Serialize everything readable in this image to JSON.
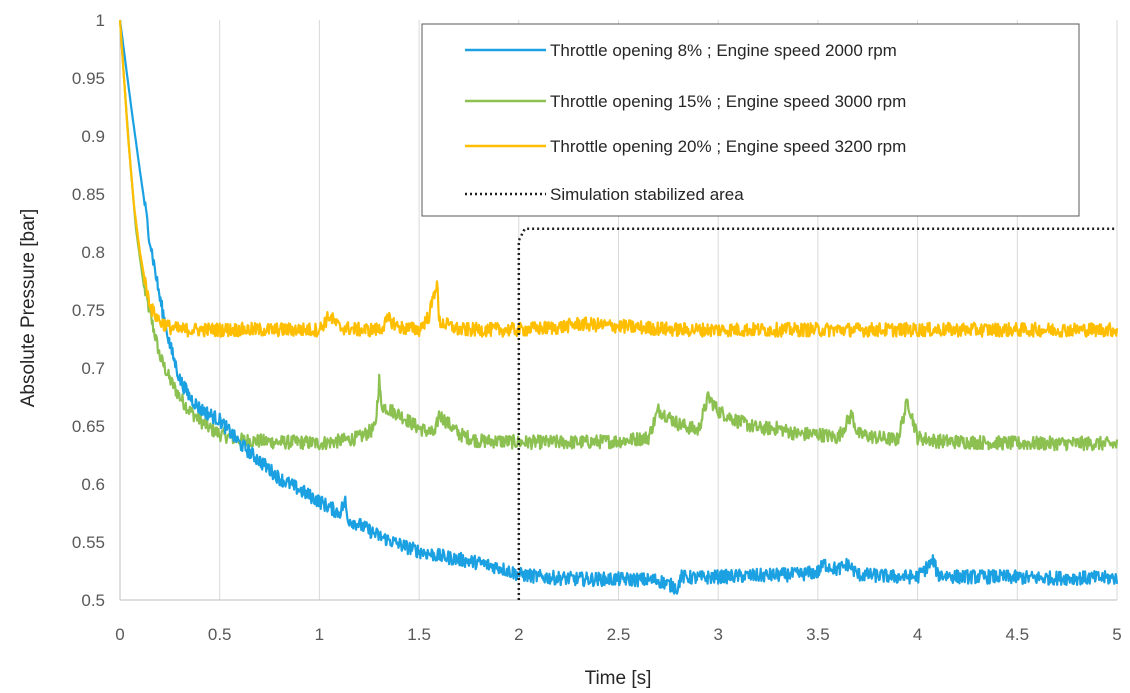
{
  "chart_data": {
    "type": "line",
    "title": "",
    "xlabel": "Time [s]",
    "ylabel": "Absolute Pressure [bar]",
    "xlim": [
      0,
      5
    ],
    "ylim": [
      0.5,
      1
    ],
    "x_ticks": [
      0,
      0.5,
      1,
      1.5,
      2,
      2.5,
      3,
      3.5,
      4,
      4.5,
      5
    ],
    "x_tick_labels": [
      "0",
      "0.5",
      "1",
      "1.5",
      "2",
      "2.5",
      "3",
      "3.5",
      "4",
      "4.5",
      "5"
    ],
    "y_ticks": [
      0.5,
      0.55,
      0.6,
      0.65,
      0.7,
      0.75,
      0.8,
      0.85,
      0.9,
      0.95,
      1
    ],
    "y_tick_labels": [
      "0.5",
      "0.55",
      "0.6",
      "0.65",
      "0.7",
      "0.75",
      "0.8",
      "0.85",
      "0.9",
      "0.95",
      "1"
    ],
    "grid": "vertical",
    "legend_position": "top-right",
    "series": [
      {
        "name": "Throttle opening 8% ; Engine speed 2000 rpm",
        "color": "#1BA1E2",
        "x": [
          0,
          0.03,
          0.06,
          0.1,
          0.15,
          0.2,
          0.25,
          0.3,
          0.35,
          0.4,
          0.45,
          0.5,
          0.55,
          0.6,
          0.7,
          0.8,
          0.9,
          1.0,
          1.1,
          1.13,
          1.14,
          1.2,
          1.3,
          1.4,
          1.5,
          1.6,
          1.7,
          1.8,
          1.9,
          2.0,
          2.1,
          2.2,
          2.3,
          2.5,
          2.7,
          2.8,
          2.81,
          2.9,
          3.0,
          3.2,
          3.4,
          3.5,
          3.53,
          3.6,
          3.65,
          3.7,
          3.8,
          3.9,
          4.0,
          4.08,
          4.1,
          4.2,
          4.4,
          4.6,
          4.8,
          5.0
        ],
        "y": [
          1.0,
          0.96,
          0.92,
          0.87,
          0.81,
          0.76,
          0.72,
          0.69,
          0.675,
          0.665,
          0.66,
          0.655,
          0.645,
          0.635,
          0.62,
          0.605,
          0.595,
          0.585,
          0.575,
          0.585,
          0.57,
          0.565,
          0.555,
          0.548,
          0.542,
          0.538,
          0.535,
          0.532,
          0.528,
          0.522,
          0.52,
          0.519,
          0.518,
          0.518,
          0.517,
          0.51,
          0.52,
          0.519,
          0.52,
          0.521,
          0.522,
          0.524,
          0.531,
          0.526,
          0.531,
          0.522,
          0.521,
          0.52,
          0.52,
          0.534,
          0.522,
          0.52,
          0.52,
          0.519,
          0.519,
          0.519
        ]
      },
      {
        "name": "Throttle opening 15% ; Engine speed 3000 rpm",
        "color": "#8CC152",
        "x": [
          0,
          0.02,
          0.05,
          0.08,
          0.12,
          0.16,
          0.2,
          0.25,
          0.3,
          0.35,
          0.4,
          0.45,
          0.5,
          0.6,
          0.7,
          0.8,
          0.9,
          1.0,
          1.1,
          1.2,
          1.28,
          1.3,
          1.31,
          1.4,
          1.5,
          1.58,
          1.6,
          1.7,
          1.8,
          1.9,
          2.0,
          2.1,
          2.3,
          2.5,
          2.65,
          2.7,
          2.8,
          2.9,
          2.95,
          3.0,
          3.1,
          3.2,
          3.3,
          3.4,
          3.5,
          3.6,
          3.67,
          3.7,
          3.8,
          3.9,
          3.95,
          4.0,
          4.1,
          4.3,
          4.5,
          4.7,
          4.9,
          5.0
        ],
        "y": [
          1.0,
          0.95,
          0.88,
          0.82,
          0.77,
          0.74,
          0.71,
          0.69,
          0.675,
          0.663,
          0.655,
          0.648,
          0.643,
          0.638,
          0.637,
          0.636,
          0.636,
          0.635,
          0.637,
          0.64,
          0.648,
          0.69,
          0.668,
          0.66,
          0.648,
          0.643,
          0.66,
          0.643,
          0.637,
          0.637,
          0.636,
          0.636,
          0.636,
          0.637,
          0.64,
          0.664,
          0.652,
          0.646,
          0.675,
          0.663,
          0.654,
          0.648,
          0.648,
          0.643,
          0.643,
          0.64,
          0.66,
          0.643,
          0.64,
          0.638,
          0.672,
          0.64,
          0.637,
          0.636,
          0.635,
          0.635,
          0.635,
          0.634
        ]
      },
      {
        "name": "Throttle opening 20% ; Engine speed 3200 rpm",
        "color": "#FFBF00",
        "x": [
          0,
          0.02,
          0.04,
          0.07,
          0.1,
          0.13,
          0.16,
          0.2,
          0.25,
          0.3,
          0.4,
          0.5,
          0.6,
          0.7,
          0.8,
          0.9,
          1.0,
          1.05,
          1.1,
          1.2,
          1.3,
          1.35,
          1.4,
          1.5,
          1.55,
          1.59,
          1.6,
          1.7,
          1.8,
          2.0,
          2.2,
          2.3,
          2.4,
          2.6,
          2.8,
          3.0,
          3.2,
          3.4,
          3.6,
          3.8,
          4.0,
          4.2,
          4.4,
          4.6,
          4.8,
          5.0
        ],
        "y": [
          1.0,
          0.95,
          0.9,
          0.84,
          0.8,
          0.77,
          0.75,
          0.74,
          0.735,
          0.733,
          0.733,
          0.733,
          0.733,
          0.733,
          0.733,
          0.733,
          0.733,
          0.745,
          0.735,
          0.733,
          0.733,
          0.742,
          0.735,
          0.733,
          0.745,
          0.775,
          0.74,
          0.733,
          0.733,
          0.733,
          0.735,
          0.738,
          0.737,
          0.735,
          0.733,
          0.733,
          0.733,
          0.733,
          0.733,
          0.733,
          0.733,
          0.733,
          0.733,
          0.733,
          0.733,
          0.733
        ]
      },
      {
        "name": "Simulation stabilized area",
        "color": "#1F1F1F",
        "style": "dotted",
        "x": [
          2.0,
          2.0,
          2.03,
          5.0
        ],
        "y": [
          0.5,
          0.81,
          0.82,
          0.82
        ]
      }
    ]
  }
}
